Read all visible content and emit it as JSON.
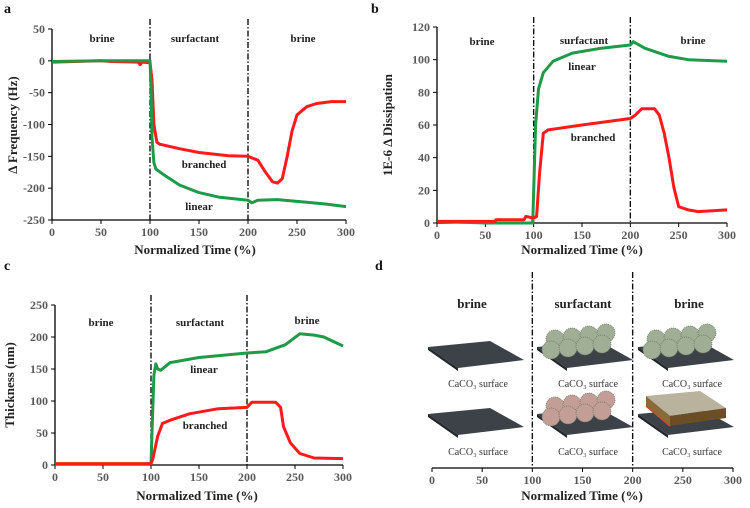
{
  "colors": {
    "branched": "#ff1a1a",
    "linear": "#1e9a48",
    "axis": "#000000",
    "plate": "#3c4247",
    "linear_micelle": "#9fae94",
    "branched_micelle": "#c29e96",
    "brush_layer": "#8a6a3a"
  },
  "chart_data": [
    {
      "panel": "a",
      "type": "line",
      "xlabel": "Normalized Time (%)",
      "ylabel": "Δ Frequency (Hz)",
      "xlim": [
        0,
        300
      ],
      "ylim": [
        -250,
        50
      ],
      "xticks": [
        0,
        50,
        100,
        150,
        200,
        250,
        300
      ],
      "yticks": [
        -250,
        -200,
        -150,
        -100,
        -50,
        0,
        50
      ],
      "phase_dividers": [
        100,
        200
      ],
      "phase_labels": [
        "brine",
        "surfactant",
        "brine"
      ],
      "series": [
        {
          "name": "branched",
          "color": "#ff1a1a",
          "points": [
            [
              0,
              -2
            ],
            [
              50,
              0
            ],
            [
              60,
              -1
            ],
            [
              88,
              -2
            ],
            [
              90,
              -6
            ],
            [
              92,
              -2
            ],
            [
              100,
              -3
            ],
            [
              102,
              -30
            ],
            [
              104,
              -100
            ],
            [
              107,
              -128
            ],
            [
              110,
              -131
            ],
            [
              130,
              -138
            ],
            [
              150,
              -144
            ],
            [
              180,
              -149
            ],
            [
              200,
              -150
            ],
            [
              210,
              -156
            ],
            [
              218,
              -175
            ],
            [
              225,
              -190
            ],
            [
              230,
              -192
            ],
            [
              235,
              -185
            ],
            [
              240,
              -150
            ],
            [
              245,
              -110
            ],
            [
              250,
              -85
            ],
            [
              260,
              -72
            ],
            [
              270,
              -67
            ],
            [
              285,
              -64
            ],
            [
              300,
              -64
            ]
          ]
        },
        {
          "name": "linear",
          "color": "#1e9a48",
          "points": [
            [
              0,
              -1
            ],
            [
              50,
              0
            ],
            [
              100,
              0
            ],
            [
              101,
              -40
            ],
            [
              102,
              -120
            ],
            [
              104,
              -160
            ],
            [
              106,
              -170
            ],
            [
              115,
              -180
            ],
            [
              130,
              -195
            ],
            [
              150,
              -207
            ],
            [
              170,
              -214
            ],
            [
              200,
              -219
            ],
            [
              204,
              -223
            ],
            [
              210,
              -219
            ],
            [
              230,
              -218
            ],
            [
              260,
              -222
            ],
            [
              280,
              -225
            ],
            [
              300,
              -229
            ]
          ]
        }
      ]
    },
    {
      "panel": "b",
      "type": "line",
      "xlabel": "Normalized Time (%)",
      "ylabel": "1E-6 Δ Dissipation",
      "xlim": [
        0,
        300
      ],
      "ylim": [
        0,
        120
      ],
      "xticks": [
        0,
        50,
        100,
        150,
        200,
        250,
        300
      ],
      "yticks": [
        0,
        20,
        40,
        60,
        80,
        100,
        120
      ],
      "phase_dividers": [
        100,
        200
      ],
      "phase_labels": [
        "brine",
        "surfactant",
        "brine"
      ],
      "series": [
        {
          "name": "linear",
          "color": "#1e9a48",
          "points": [
            [
              0,
              1
            ],
            [
              50,
              0
            ],
            [
              99,
              0
            ],
            [
              100,
              20
            ],
            [
              102,
              60
            ],
            [
              105,
              82
            ],
            [
              110,
              92
            ],
            [
              120,
              99
            ],
            [
              140,
              104
            ],
            [
              170,
              107
            ],
            [
              200,
              109
            ],
            [
              203,
              111
            ],
            [
              215,
              107
            ],
            [
              240,
              102
            ],
            [
              260,
              100
            ],
            [
              300,
              99
            ]
          ]
        },
        {
          "name": "branched",
          "color": "#ff1a1a",
          "points": [
            [
              0,
              1
            ],
            [
              60,
              1
            ],
            [
              61,
              2
            ],
            [
              90,
              2
            ],
            [
              92,
              4
            ],
            [
              100,
              3
            ],
            [
              103,
              4
            ],
            [
              106,
              30
            ],
            [
              110,
              55
            ],
            [
              115,
              57
            ],
            [
              150,
              60
            ],
            [
              200,
              64
            ],
            [
              205,
              66
            ],
            [
              212,
              70
            ],
            [
              225,
              70
            ],
            [
              230,
              66
            ],
            [
              235,
              55
            ],
            [
              240,
              40
            ],
            [
              245,
              22
            ],
            [
              250,
              10
            ],
            [
              260,
              8
            ],
            [
              270,
              7
            ],
            [
              300,
              8
            ]
          ]
        }
      ]
    },
    {
      "panel": "c",
      "type": "line",
      "xlabel": "Normalized Time (%)",
      "ylabel": "Thickness (nm)",
      "xlim": [
        0,
        300
      ],
      "ylim": [
        0,
        250
      ],
      "xticks": [
        0,
        50,
        100,
        150,
        200,
        250,
        300
      ],
      "yticks": [
        0,
        50,
        100,
        150,
        200,
        250
      ],
      "phase_dividers": [
        100,
        200
      ],
      "phase_labels": [
        "brine",
        "surfactant",
        "brine"
      ],
      "series": [
        {
          "name": "linear",
          "color": "#1e9a48",
          "points": [
            [
              0,
              2
            ],
            [
              100,
              2
            ],
            [
              101,
              50
            ],
            [
              103,
              140
            ],
            [
              105,
              158
            ],
            [
              107,
              150
            ],
            [
              110,
              148
            ],
            [
              120,
              160
            ],
            [
              150,
              168
            ],
            [
              200,
              175
            ],
            [
              220,
              177
            ],
            [
              240,
              188
            ],
            [
              255,
              205
            ],
            [
              270,
              203
            ],
            [
              280,
              200
            ],
            [
              300,
              186
            ]
          ]
        },
        {
          "name": "branched",
          "color": "#ff1a1a",
          "points": [
            [
              0,
              2
            ],
            [
              100,
              2
            ],
            [
              102,
              10
            ],
            [
              107,
              45
            ],
            [
              112,
              65
            ],
            [
              120,
              70
            ],
            [
              140,
              80
            ],
            [
              170,
              88
            ],
            [
              200,
              90
            ],
            [
              205,
              98
            ],
            [
              230,
              98
            ],
            [
              235,
              90
            ],
            [
              238,
              60
            ],
            [
              245,
              35
            ],
            [
              255,
              18
            ],
            [
              270,
              11
            ],
            [
              300,
              10
            ]
          ]
        }
      ]
    },
    {
      "panel": "d",
      "type": "schematic",
      "xlabel": "Normalized Time (%)",
      "xlim": [
        0,
        300
      ],
      "xticks": [
        0,
        50,
        100,
        150,
        200,
        250,
        300
      ],
      "phase_dividers": [
        100,
        200
      ],
      "phase_labels": [
        "brine",
        "surfactant",
        "brine"
      ],
      "surface_label": "CaCO₃ surface"
    }
  ]
}
